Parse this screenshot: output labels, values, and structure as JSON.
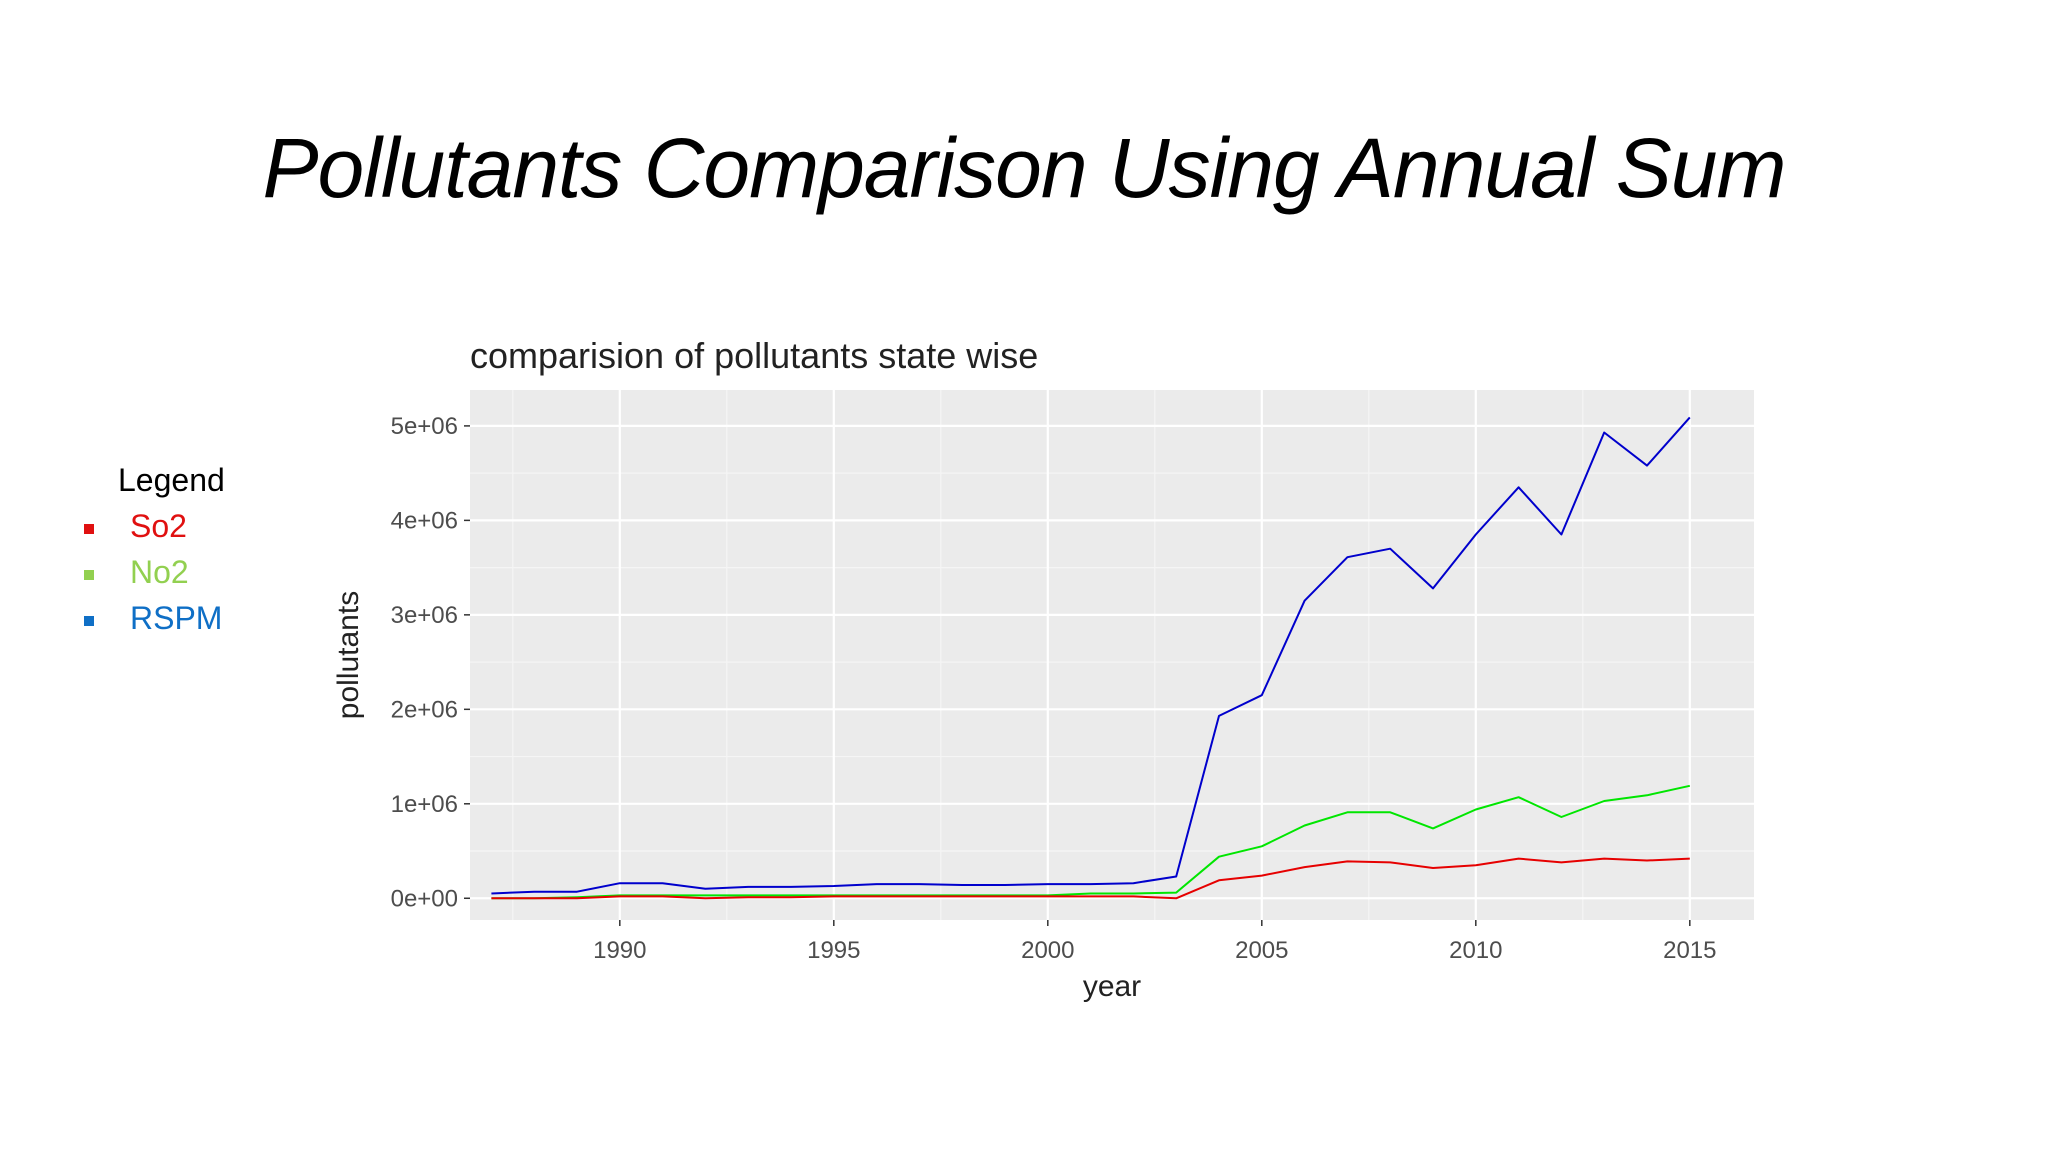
{
  "slide": {
    "title": "Pollutants Comparison Using Annual Sum"
  },
  "legend": {
    "title": "Legend",
    "items": [
      {
        "label": "So2",
        "color": "#e01010"
      },
      {
        "label": "No2",
        "color": "#92d050"
      },
      {
        "label": "RSPM",
        "color": "#0f6fc6"
      }
    ]
  },
  "chart_data": {
    "type": "line",
    "title": "comparision of pollutants state wise",
    "xlabel": "year",
    "ylabel": "pollutants",
    "xlim": [
      1986.5,
      2016.5
    ],
    "ylim": [
      -230000,
      5380000
    ],
    "xticks": [
      1990,
      1995,
      2000,
      2005,
      2010,
      2015
    ],
    "xtick_labels": [
      "1990",
      "1995",
      "2000",
      "2005",
      "2010",
      "2015"
    ],
    "yticks": [
      0,
      1000000,
      2000000,
      3000000,
      4000000,
      5000000
    ],
    "ytick_labels": [
      "0e+00",
      "1e+06",
      "2e+06",
      "3e+06",
      "4e+06",
      "5e+06"
    ],
    "grid": true,
    "background": "#ebebeb",
    "x": [
      1987,
      1988,
      1989,
      1990,
      1991,
      1992,
      1993,
      1994,
      1995,
      1996,
      1997,
      1998,
      1999,
      2000,
      2001,
      2002,
      2003,
      2004,
      2005,
      2006,
      2007,
      2008,
      2009,
      2010,
      2011,
      2012,
      2013,
      2014,
      2015
    ],
    "series": [
      {
        "color": "#0000cc",
        "values": [
          50000,
          70000,
          70000,
          160000,
          160000,
          100000,
          120000,
          120000,
          130000,
          150000,
          150000,
          140000,
          140000,
          150000,
          150000,
          160000,
          230000,
          1930000,
          2150000,
          3150000,
          3610000,
          3700000,
          3280000,
          3850000,
          4350000,
          3850000,
          4930000,
          4580000,
          5090000
        ]
      },
      {
        "color": "#00e600",
        "values": [
          0,
          0,
          10000,
          30000,
          30000,
          30000,
          30000,
          30000,
          30000,
          30000,
          30000,
          30000,
          30000,
          30000,
          50000,
          50000,
          60000,
          440000,
          550000,
          770000,
          910000,
          910000,
          740000,
          940000,
          1070000,
          860000,
          1030000,
          1090000,
          1190000
        ]
      },
      {
        "color": "#e60000",
        "values": [
          0,
          0,
          0,
          20000,
          20000,
          0,
          10000,
          10000,
          20000,
          20000,
          20000,
          20000,
          20000,
          20000,
          20000,
          20000,
          0,
          190000,
          240000,
          330000,
          390000,
          380000,
          320000,
          350000,
          420000,
          380000,
          420000,
          400000,
          420000
        ]
      }
    ]
  }
}
